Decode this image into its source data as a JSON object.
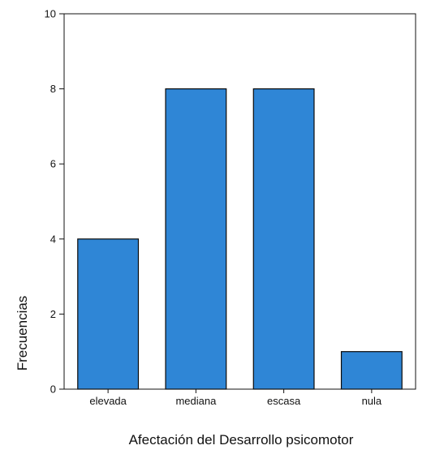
{
  "chart_data": {
    "type": "bar",
    "categories": [
      "elevada",
      "mediana",
      "escasa",
      "nula"
    ],
    "values": [
      4,
      8,
      8,
      1
    ],
    "title": "",
    "xlabel": "Afectación del Desarrollo psicomotor",
    "ylabel": "Frecuencias",
    "ylim": [
      0,
      10
    ],
    "yticks": [
      0,
      2,
      4,
      6,
      8,
      10
    ],
    "grid": false,
    "bar_color": "#2f86d6",
    "bar_edge_color": "#0a0a0a"
  }
}
